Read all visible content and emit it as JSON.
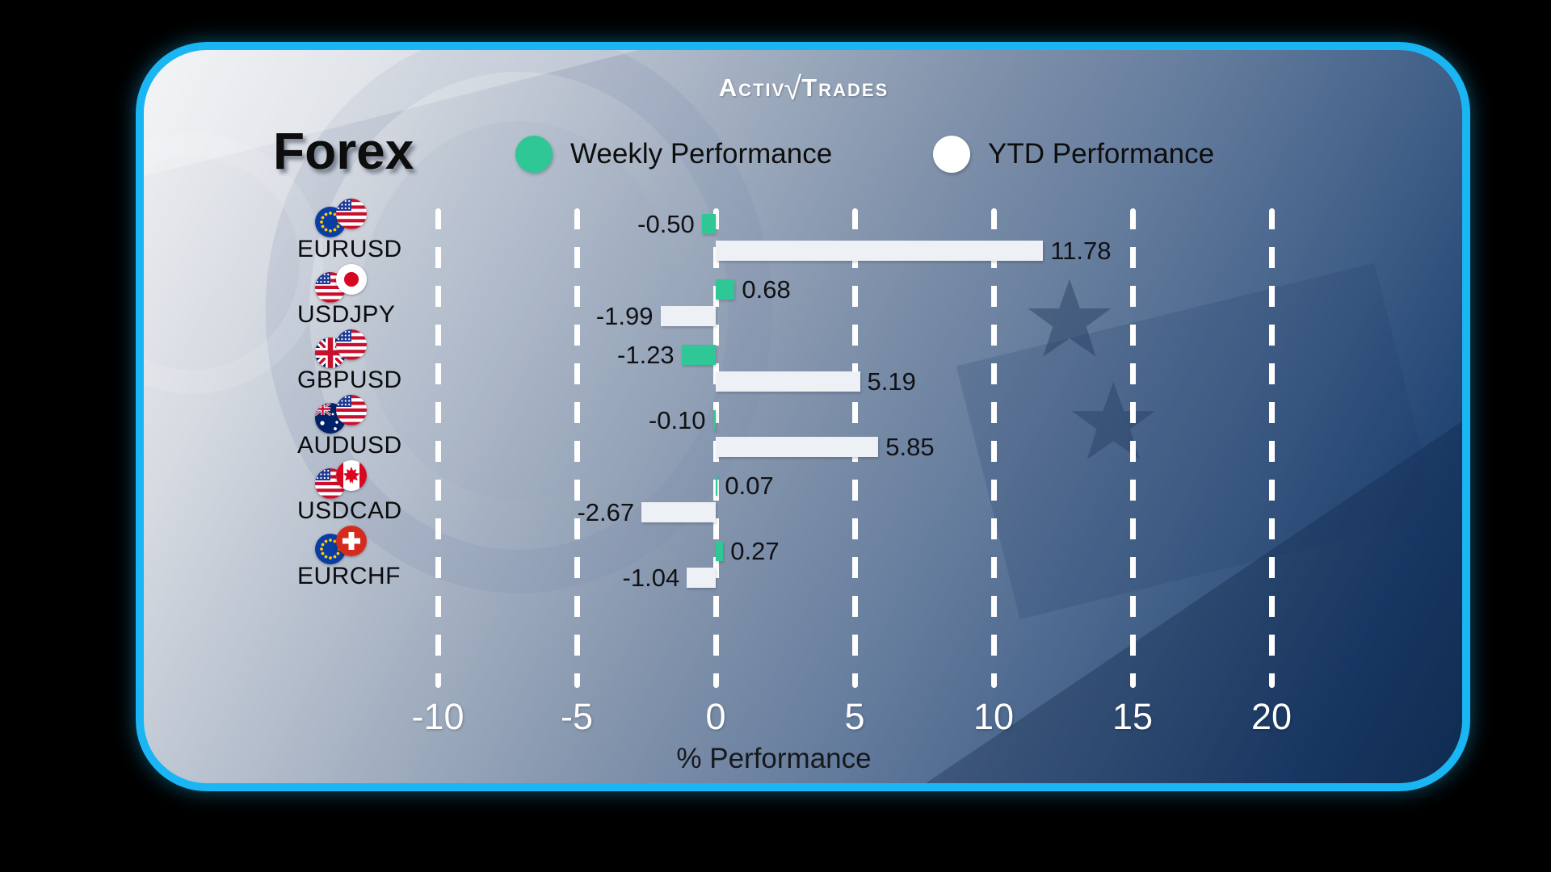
{
  "brand": {
    "part1": "Activ",
    "radical": "√",
    "part2": "Trades"
  },
  "title": "Forex",
  "legend": [
    {
      "label": "Weekly Performance",
      "color": "#2ec795"
    },
    {
      "label": "YTD Performance",
      "color": "#ffffff"
    }
  ],
  "axis": {
    "label": "% Performance",
    "ticks": [
      {
        "label": "-10",
        "value": -10
      },
      {
        "label": "-5",
        "value": -5
      },
      {
        "label": "0",
        "value": 0
      },
      {
        "label": "5",
        "value": 5
      },
      {
        "label": "10",
        "value": 10
      },
      {
        "label": "15",
        "value": 15
      },
      {
        "label": "20",
        "value": 20
      }
    ]
  },
  "rows": [
    {
      "pair": "EURUSD",
      "flags": [
        "eu",
        "us"
      ],
      "weekly": -0.5,
      "weekly_label": "-0.50",
      "ytd": 11.78,
      "ytd_label": "11.78"
    },
    {
      "pair": "USDJPY",
      "flags": [
        "us",
        "jp"
      ],
      "weekly": 0.68,
      "weekly_label": "0.68",
      "ytd": -1.99,
      "ytd_label": "-1.99"
    },
    {
      "pair": "GBPUSD",
      "flags": [
        "gb",
        "us"
      ],
      "weekly": -1.23,
      "weekly_label": "-1.23",
      "ytd": 5.19,
      "ytd_label": "5.19"
    },
    {
      "pair": "AUDUSD",
      "flags": [
        "au",
        "us"
      ],
      "weekly": -0.1,
      "weekly_label": "-0.10",
      "ytd": 5.85,
      "ytd_label": "5.85"
    },
    {
      "pair": "USDCAD",
      "flags": [
        "us",
        "ca"
      ],
      "weekly": 0.07,
      "weekly_label": "0.07",
      "ytd": -2.67,
      "ytd_label": "-2.67"
    },
    {
      "pair": "EURCHF",
      "flags": [
        "eu",
        "ch"
      ],
      "weekly": 0.27,
      "weekly_label": "0.27",
      "ytd": -1.04,
      "ytd_label": "-1.04"
    }
  ],
  "chart_data": {
    "type": "bar",
    "orientation": "horizontal",
    "title": "Forex",
    "categories": [
      "EURUSD",
      "USDJPY",
      "GBPUSD",
      "AUDUSD",
      "USDCAD",
      "EURCHF"
    ],
    "series": [
      {
        "name": "Weekly Performance",
        "color": "#2ec795",
        "values": [
          -0.5,
          0.68,
          -1.23,
          -0.1,
          0.07,
          0.27
        ]
      },
      {
        "name": "YTD Performance",
        "color": "#edf1f5",
        "values": [
          11.78,
          -1.99,
          5.19,
          5.85,
          -2.67,
          -1.04
        ]
      }
    ],
    "xlabel": "% Performance",
    "xlim": [
      -12.5,
      22.5
    ],
    "gridlines": [
      -10,
      -5,
      0,
      5,
      10,
      15,
      20
    ],
    "grid": "dashed-vertical",
    "legend_position": "top"
  },
  "colors": {
    "accent_border": "#1ab6f4",
    "weekly_bar": "#2ec795",
    "ytd_bar": "#edf1f5",
    "grid": "#ffffff",
    "tick_text": "#ffffff",
    "value_text": "#101114"
  }
}
